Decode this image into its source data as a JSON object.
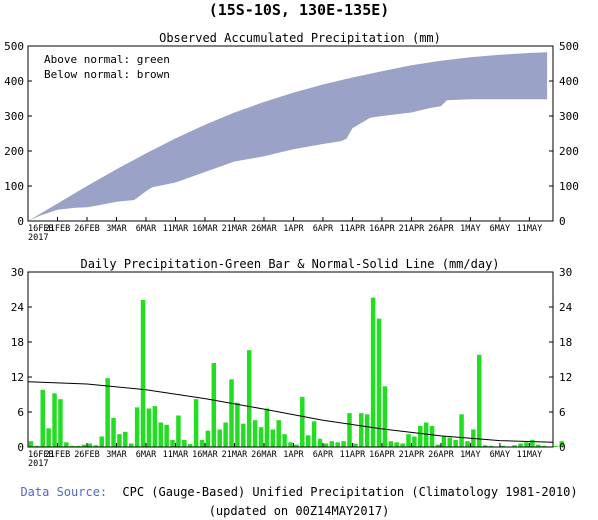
{
  "header": {
    "title": "(15S-10S, 130E-135E)"
  },
  "footer": {
    "source_label": "Data Source:",
    "source_text": "CPC (Gauge-Based) Unified Precipitation (Climatology 1981-2010)",
    "updated": "(updated on 00Z14MAY2017)"
  },
  "chart_data": [
    {
      "type": "area",
      "title": "Observed Accumulated Precipitation (mm)",
      "legend_notes": [
        "Above normal: green",
        "Below normal: brown"
      ],
      "x_tick_labels": [
        "16FEB",
        "21FEB",
        "26FEB",
        "3MAR",
        "6MAR",
        "11MAR",
        "16MAR",
        "21MAR",
        "26MAR",
        "1APR",
        "6APR",
        "11APR",
        "16APR",
        "21APR",
        "26APR",
        "1MAY",
        "6MAY",
        "11MAY"
      ],
      "x_start_label": "2017",
      "ylim": [
        0,
        500
      ],
      "y_ticks": [
        0,
        100,
        200,
        300,
        400,
        500
      ],
      "fill_color": "#9aa2c8",
      "upper_series": {
        "name": "normal",
        "x": [
          0,
          5,
          10,
          15,
          20,
          25,
          30,
          35,
          40,
          45,
          50,
          55,
          60,
          65,
          70,
          75,
          80,
          85,
          88
        ],
        "values": [
          0,
          50,
          100,
          148,
          193,
          236,
          275,
          310,
          340,
          367,
          390,
          410,
          428,
          445,
          458,
          468,
          475,
          480,
          482
        ]
      },
      "lower_series": {
        "name": "observed",
        "x": [
          0,
          2,
          5,
          8,
          10,
          12,
          15,
          18,
          20,
          21,
          25,
          30,
          35,
          40,
          45,
          50,
          53,
          54,
          55,
          58,
          60,
          65,
          68,
          70,
          71,
          75,
          80,
          85,
          88
        ],
        "values": [
          0,
          15,
          32,
          38,
          39,
          45,
          55,
          60,
          85,
          96,
          110,
          140,
          170,
          185,
          205,
          220,
          228,
          235,
          265,
          295,
          300,
          310,
          322,
          328,
          345,
          348,
          348,
          348,
          348
        ]
      }
    },
    {
      "type": "bar",
      "title": "Daily Precipitation-Green Bar & Normal-Solid Line (mm/day)",
      "x_tick_labels": [
        "16FEB",
        "21FEB",
        "26FEB",
        "3MAR",
        "6MAR",
        "11MAR",
        "16MAR",
        "21MAR",
        "26MAR",
        "1APR",
        "6APR",
        "11APR",
        "16APR",
        "21APR",
        "26APR",
        "1MAY",
        "6MAY",
        "11MAY"
      ],
      "x_start_label": "2017",
      "ylim": [
        0,
        30
      ],
      "y_ticks": [
        0,
        6,
        12,
        18,
        24,
        30
      ],
      "bar_color": "#22dd22",
      "line_color": "#000000",
      "values": [
        1.0,
        0.2,
        9.8,
        3.2,
        9.2,
        8.2,
        0.8,
        0.2,
        0.2,
        0.4,
        0.6,
        0.3,
        1.8,
        11.8,
        5.0,
        2.2,
        2.6,
        0.6,
        6.8,
        25.2,
        6.6,
        7.0,
        4.2,
        3.8,
        1.2,
        5.4,
        1.2,
        0.5,
        8.2,
        1.2,
        2.8,
        14.4,
        3.0,
        4.2,
        11.6,
        7.6,
        4.0,
        16.6,
        4.6,
        3.4,
        6.6,
        3.0,
        4.6,
        2.2,
        0.8,
        0.4,
        8.6,
        2.0,
        4.4,
        1.4,
        0.6,
        1.0,
        0.8,
        1.0,
        5.8,
        0.6,
        5.8,
        5.6,
        25.6,
        22.0,
        10.4,
        1.0,
        0.8,
        0.6,
        2.2,
        1.8,
        3.6,
        4.2,
        3.6,
        0.4,
        1.8,
        1.6,
        1.2,
        5.6,
        1.0,
        3.0,
        15.8,
        0.3,
        0.2,
        0,
        0.2,
        0,
        0.3,
        0.6,
        0.8,
        1.2,
        0.4,
        0.2,
        0,
        0.2,
        1.0,
        0
      ],
      "normal_line": {
        "x": [
          0,
          10,
          20,
          30,
          40,
          50,
          60,
          70,
          80,
          89
        ],
        "values": [
          11.2,
          10.8,
          9.8,
          8.3,
          6.5,
          4.6,
          3.1,
          1.9,
          1.1,
          0.8
        ]
      }
    }
  ]
}
